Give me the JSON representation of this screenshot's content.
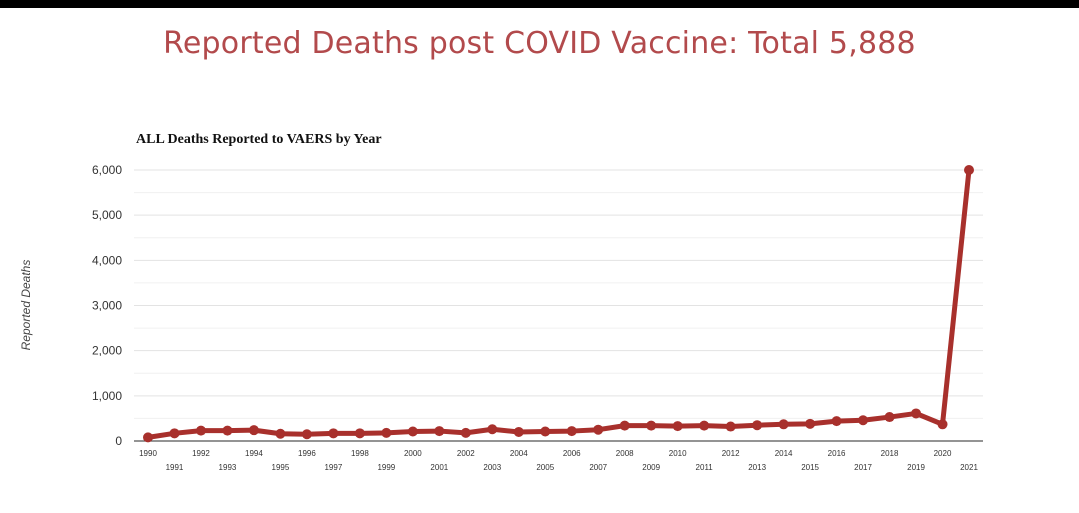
{
  "headline": "Reported Deaths post COVID Vaccine: Total 5,888",
  "colors": {
    "headline": "#b24a4c",
    "series": "#a8302c",
    "grid": "#e3e3e3"
  },
  "chart_data": {
    "type": "line",
    "title": "ALL Deaths Reported to VAERS by Year",
    "xlabel": "",
    "ylabel": "Reported Deaths",
    "ylim": [
      0,
      6000
    ],
    "yticks": [
      "0",
      "1,000",
      "2,000",
      "3,000",
      "4,000",
      "5,000",
      "6,000"
    ],
    "grid": true,
    "legend": "none",
    "categories": [
      "1990",
      "1991",
      "1992",
      "1993",
      "1994",
      "1995",
      "1996",
      "1997",
      "1998",
      "1999",
      "2000",
      "2001",
      "2002",
      "2003",
      "2004",
      "2005",
      "2006",
      "2007",
      "2008",
      "2009",
      "2010",
      "2011",
      "2012",
      "2013",
      "2014",
      "2015",
      "2016",
      "2017",
      "2018",
      "2019",
      "2020",
      "2021"
    ],
    "values": [
      80,
      170,
      230,
      230,
      240,
      160,
      150,
      170,
      170,
      180,
      210,
      220,
      180,
      260,
      200,
      210,
      220,
      250,
      340,
      340,
      330,
      340,
      320,
      350,
      370,
      380,
      440,
      460,
      530,
      610,
      370,
      6000
    ]
  }
}
